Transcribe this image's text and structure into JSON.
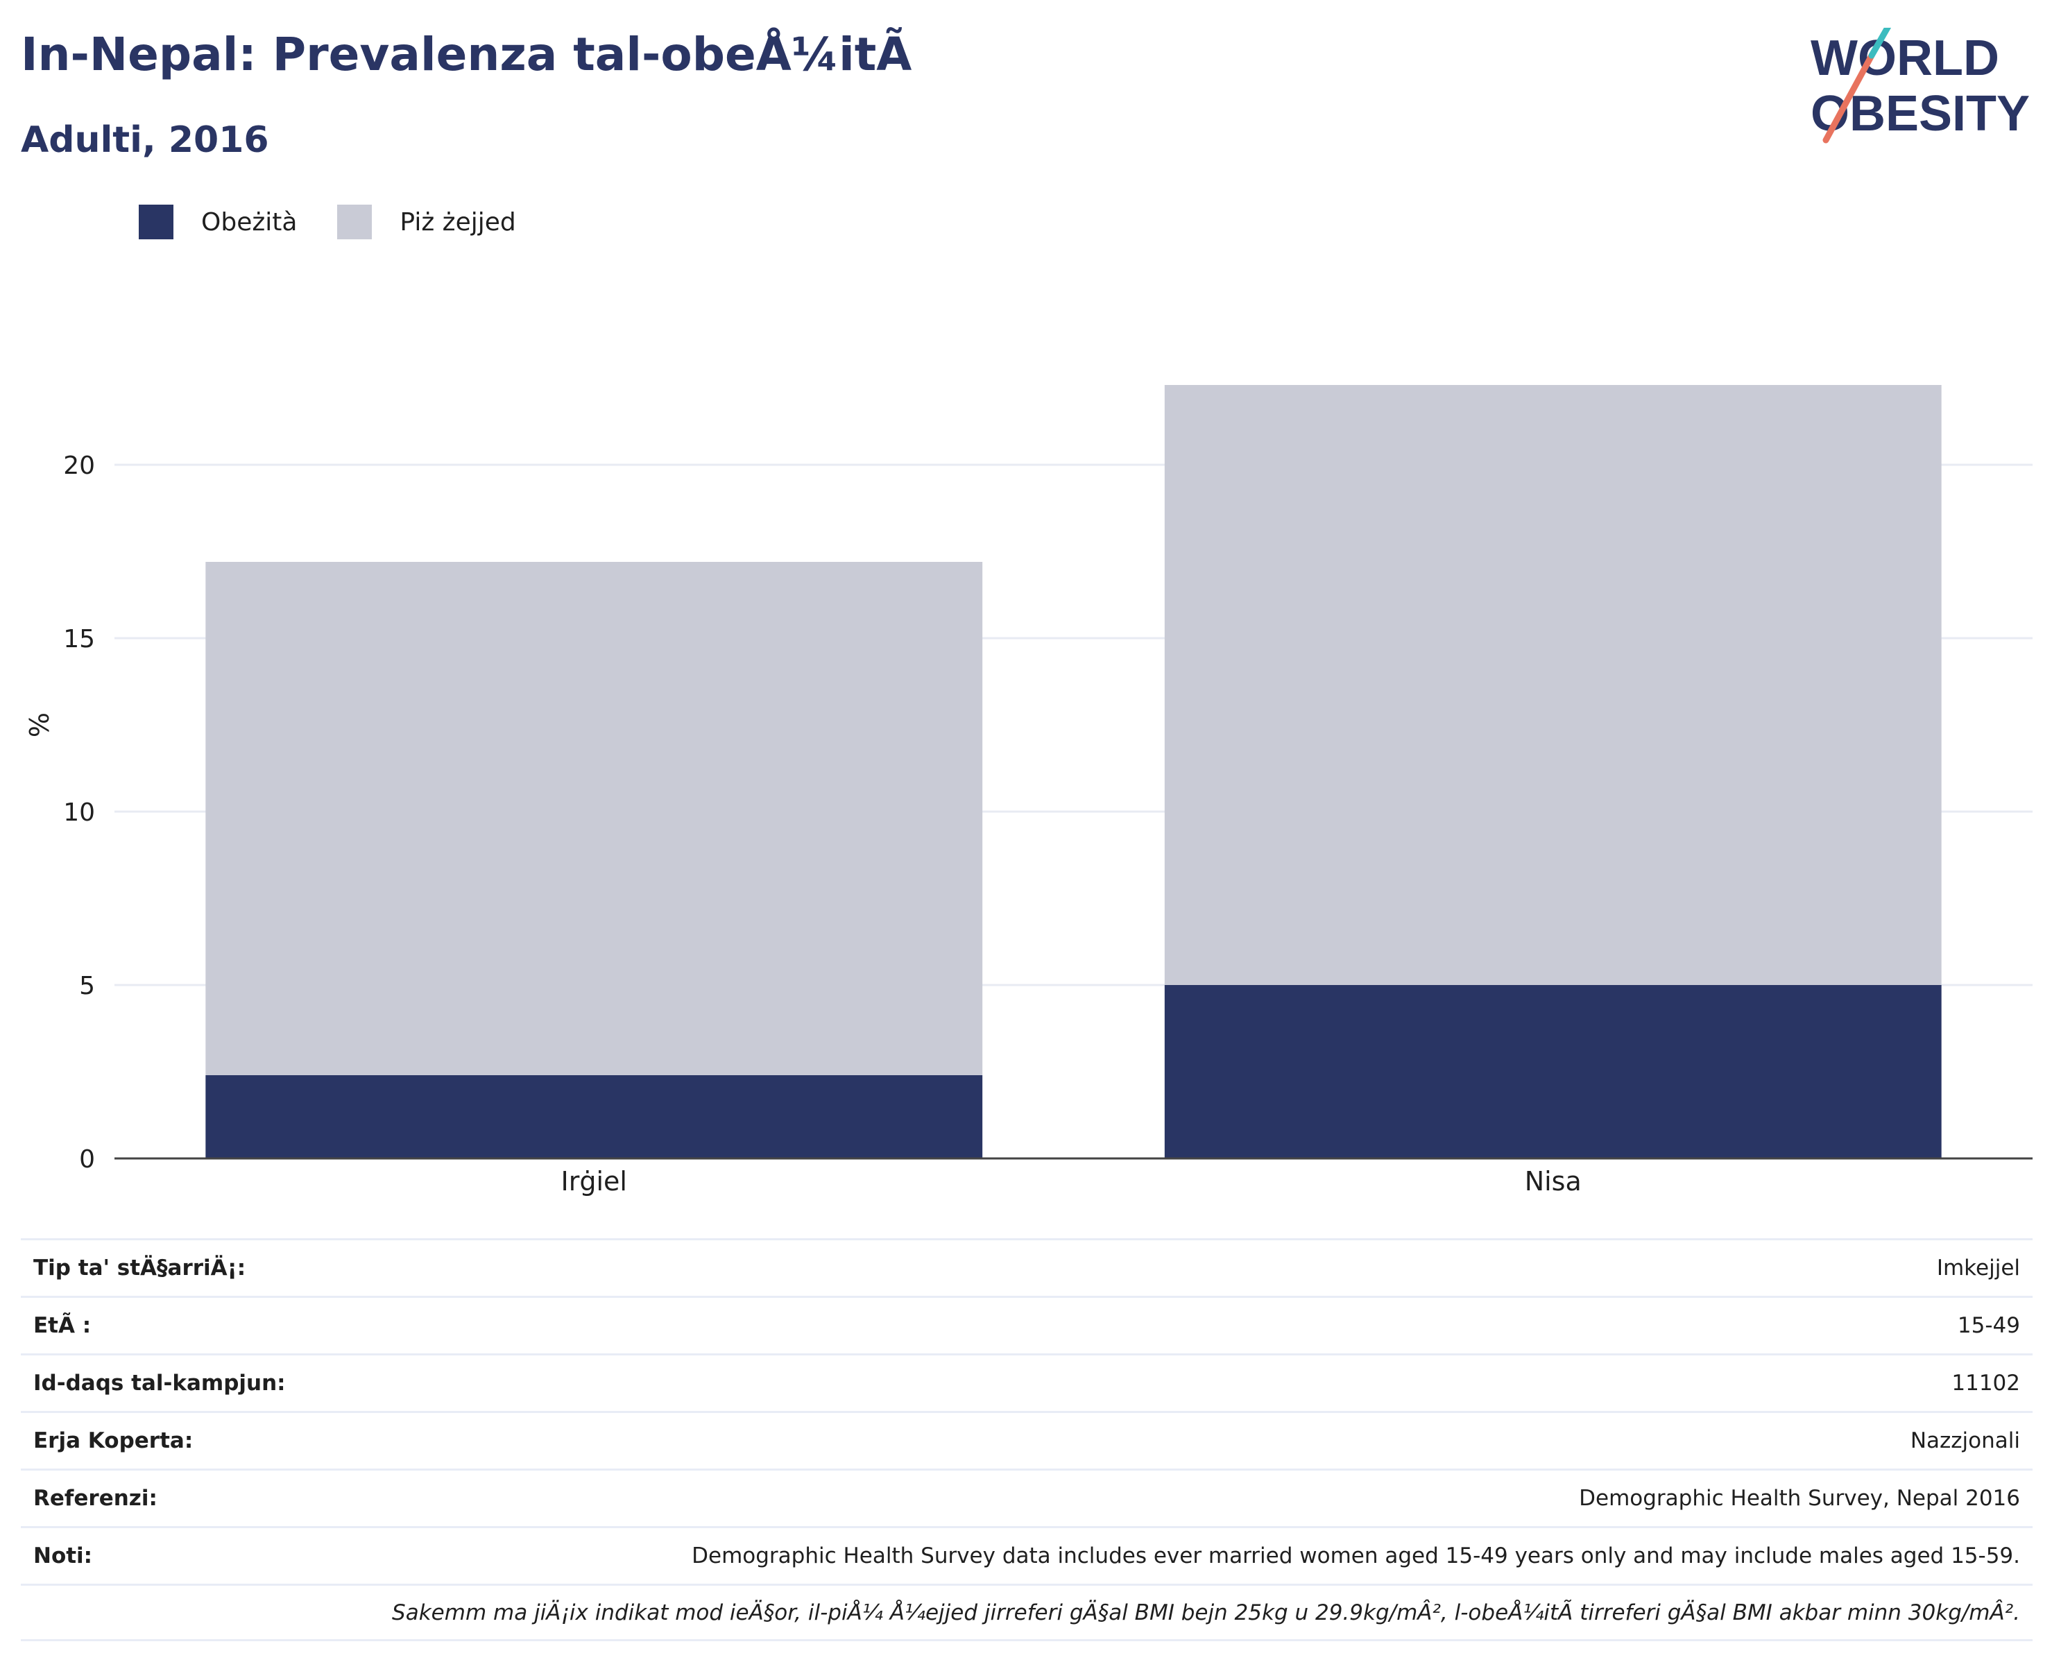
{
  "header": {
    "title": "In-Nepal: Prevalenza tal-obeÅ¼itÃ",
    "subtitle": "Adulti, 2016"
  },
  "logo": {
    "line1": "WORLD",
    "line2": "OBESITY"
  },
  "colors": {
    "obesity": "#293564",
    "overweight": "#c9cbd6",
    "text_dark": "#2a3564",
    "logo_red": "#e8735e",
    "logo_teal": "#3cbcbf"
  },
  "legend": [
    {
      "label": "Obeżità",
      "color": "#293564"
    },
    {
      "label": "Piż żejjed",
      "color": "#c9cbd6"
    }
  ],
  "chart_data": {
    "type": "bar",
    "stacked": true,
    "categories": [
      "Irġiel",
      "Nisa"
    ],
    "series": [
      {
        "name": "Obeżità",
        "values": [
          2.4,
          5.0
        ]
      },
      {
        "name": "Piż żejjed",
        "values": [
          14.8,
          17.3
        ]
      }
    ],
    "ylabel": "%",
    "ylim": [
      0,
      25
    ],
    "yticks": [
      0,
      5,
      10,
      15,
      20
    ],
    "grid": true,
    "legend_position": "top-left"
  },
  "info_table": [
    {
      "label": "Tip ta' stÄ§arriÄ¡:",
      "value": "Imkejjel"
    },
    {
      "label": "EtÃ :",
      "value": "15-49"
    },
    {
      "label": "Id-daqs tal-kampjun:",
      "value": "11102"
    },
    {
      "label": "Erja Koperta:",
      "value": "Nazzjonali"
    },
    {
      "label": "Referenzi:",
      "value": "Demographic Health Survey, Nepal 2016"
    },
    {
      "label": "Noti:",
      "value": "Demographic Health Survey data includes ever married women aged 15-49 years only and may include males aged 15-59."
    }
  ],
  "footnote": "Sakemm ma jiÄ¡ix indikat mod ieÄ§or, il-piÅ¼ Å¼ejjed jirreferi gÄ§al BMI bejn 25kg u 29.9kg/mÂ², l-obeÅ¼itÃ  tirreferi gÄ§al BMI akbar minn 30kg/mÂ²."
}
